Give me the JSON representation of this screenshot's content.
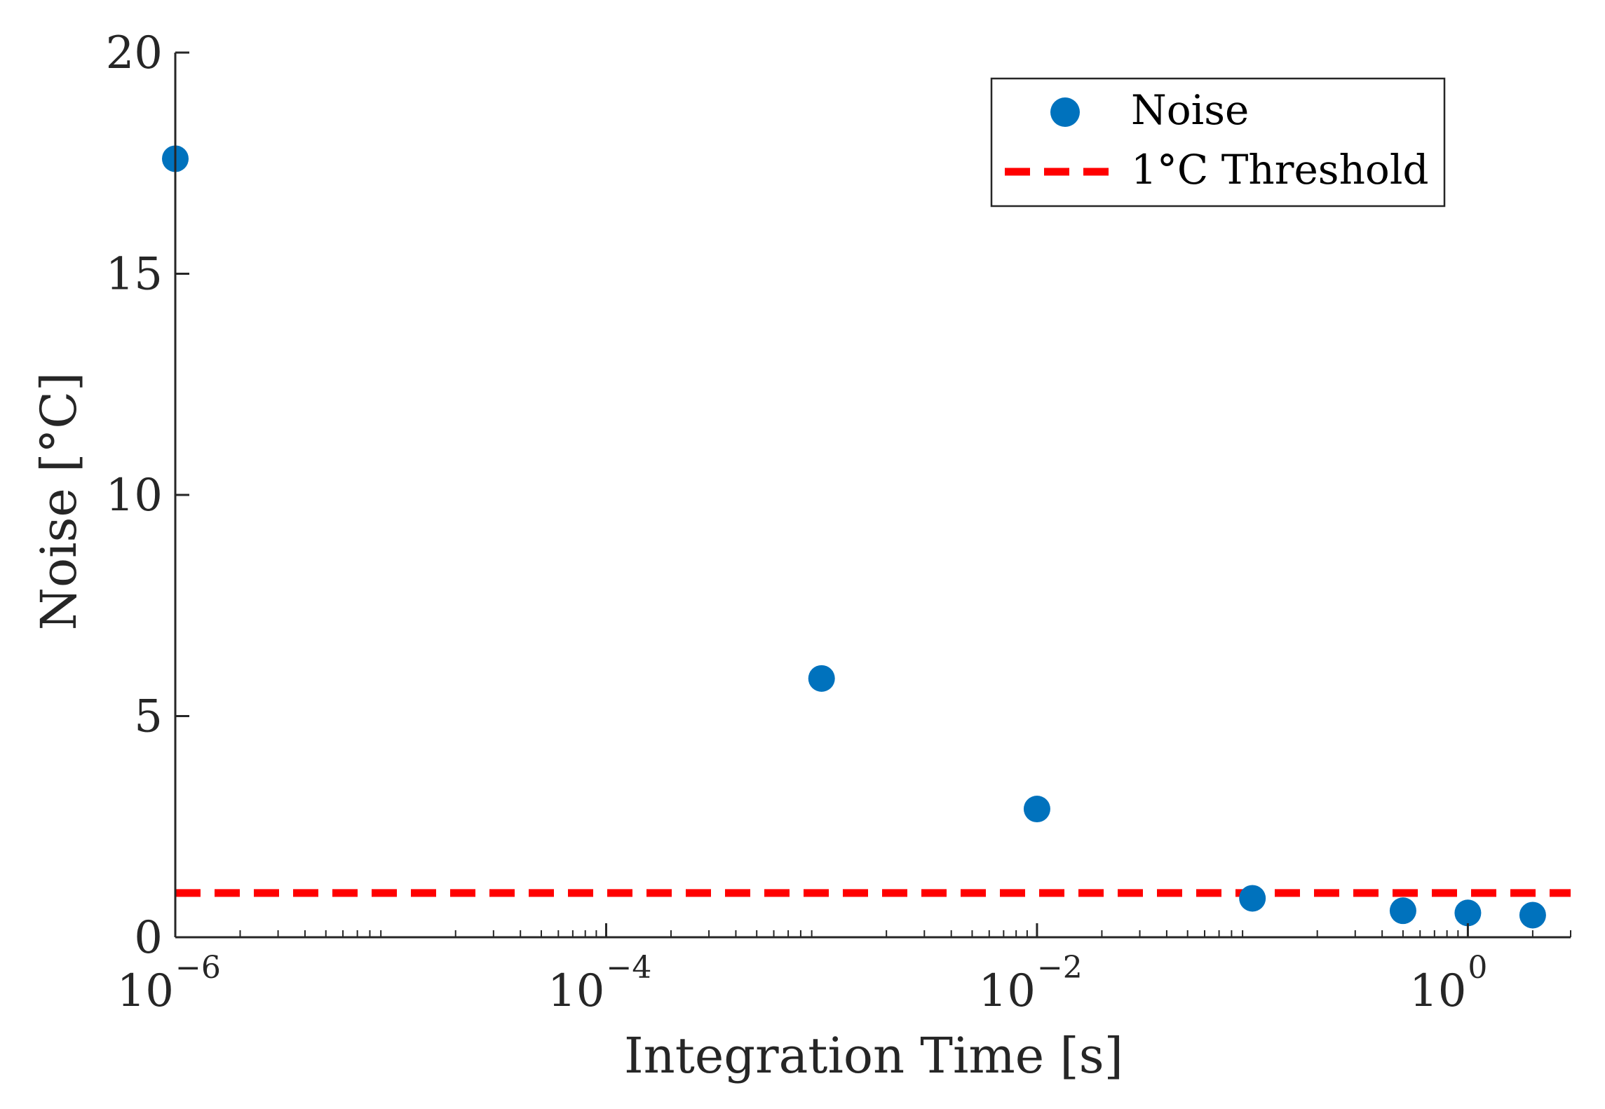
{
  "chart_data": {
    "type": "scatter",
    "xlabel": "Integration Time [s]",
    "ylabel": "Noise [°C]",
    "xscale": "log",
    "xlim": [
      1e-06,
      3
    ],
    "ylim": [
      0,
      20
    ],
    "grid": false,
    "legend_position": "top-right",
    "y_ticks": [
      "0",
      "5",
      "10",
      "15",
      "20"
    ],
    "x_ticks": [
      {
        "base": "10",
        "exp": "−6",
        "value": 1e-06
      },
      {
        "base": "10",
        "exp": "−4",
        "value": 0.0001
      },
      {
        "base": "10",
        "exp": "−2",
        "value": 0.01
      },
      {
        "base": "10",
        "exp": "0",
        "value": 1
      }
    ],
    "series": [
      {
        "name": "Noise",
        "color": "#0072BD",
        "x": [
          1e-06,
          0.001,
          0.01,
          0.1,
          0.5,
          1,
          2
        ],
        "y": [
          17.6,
          5.85,
          2.9,
          0.88,
          0.6,
          0.55,
          0.5
        ]
      }
    ],
    "threshold": {
      "name": "1°C Threshold",
      "value": 1,
      "color": "#FF0000"
    }
  }
}
